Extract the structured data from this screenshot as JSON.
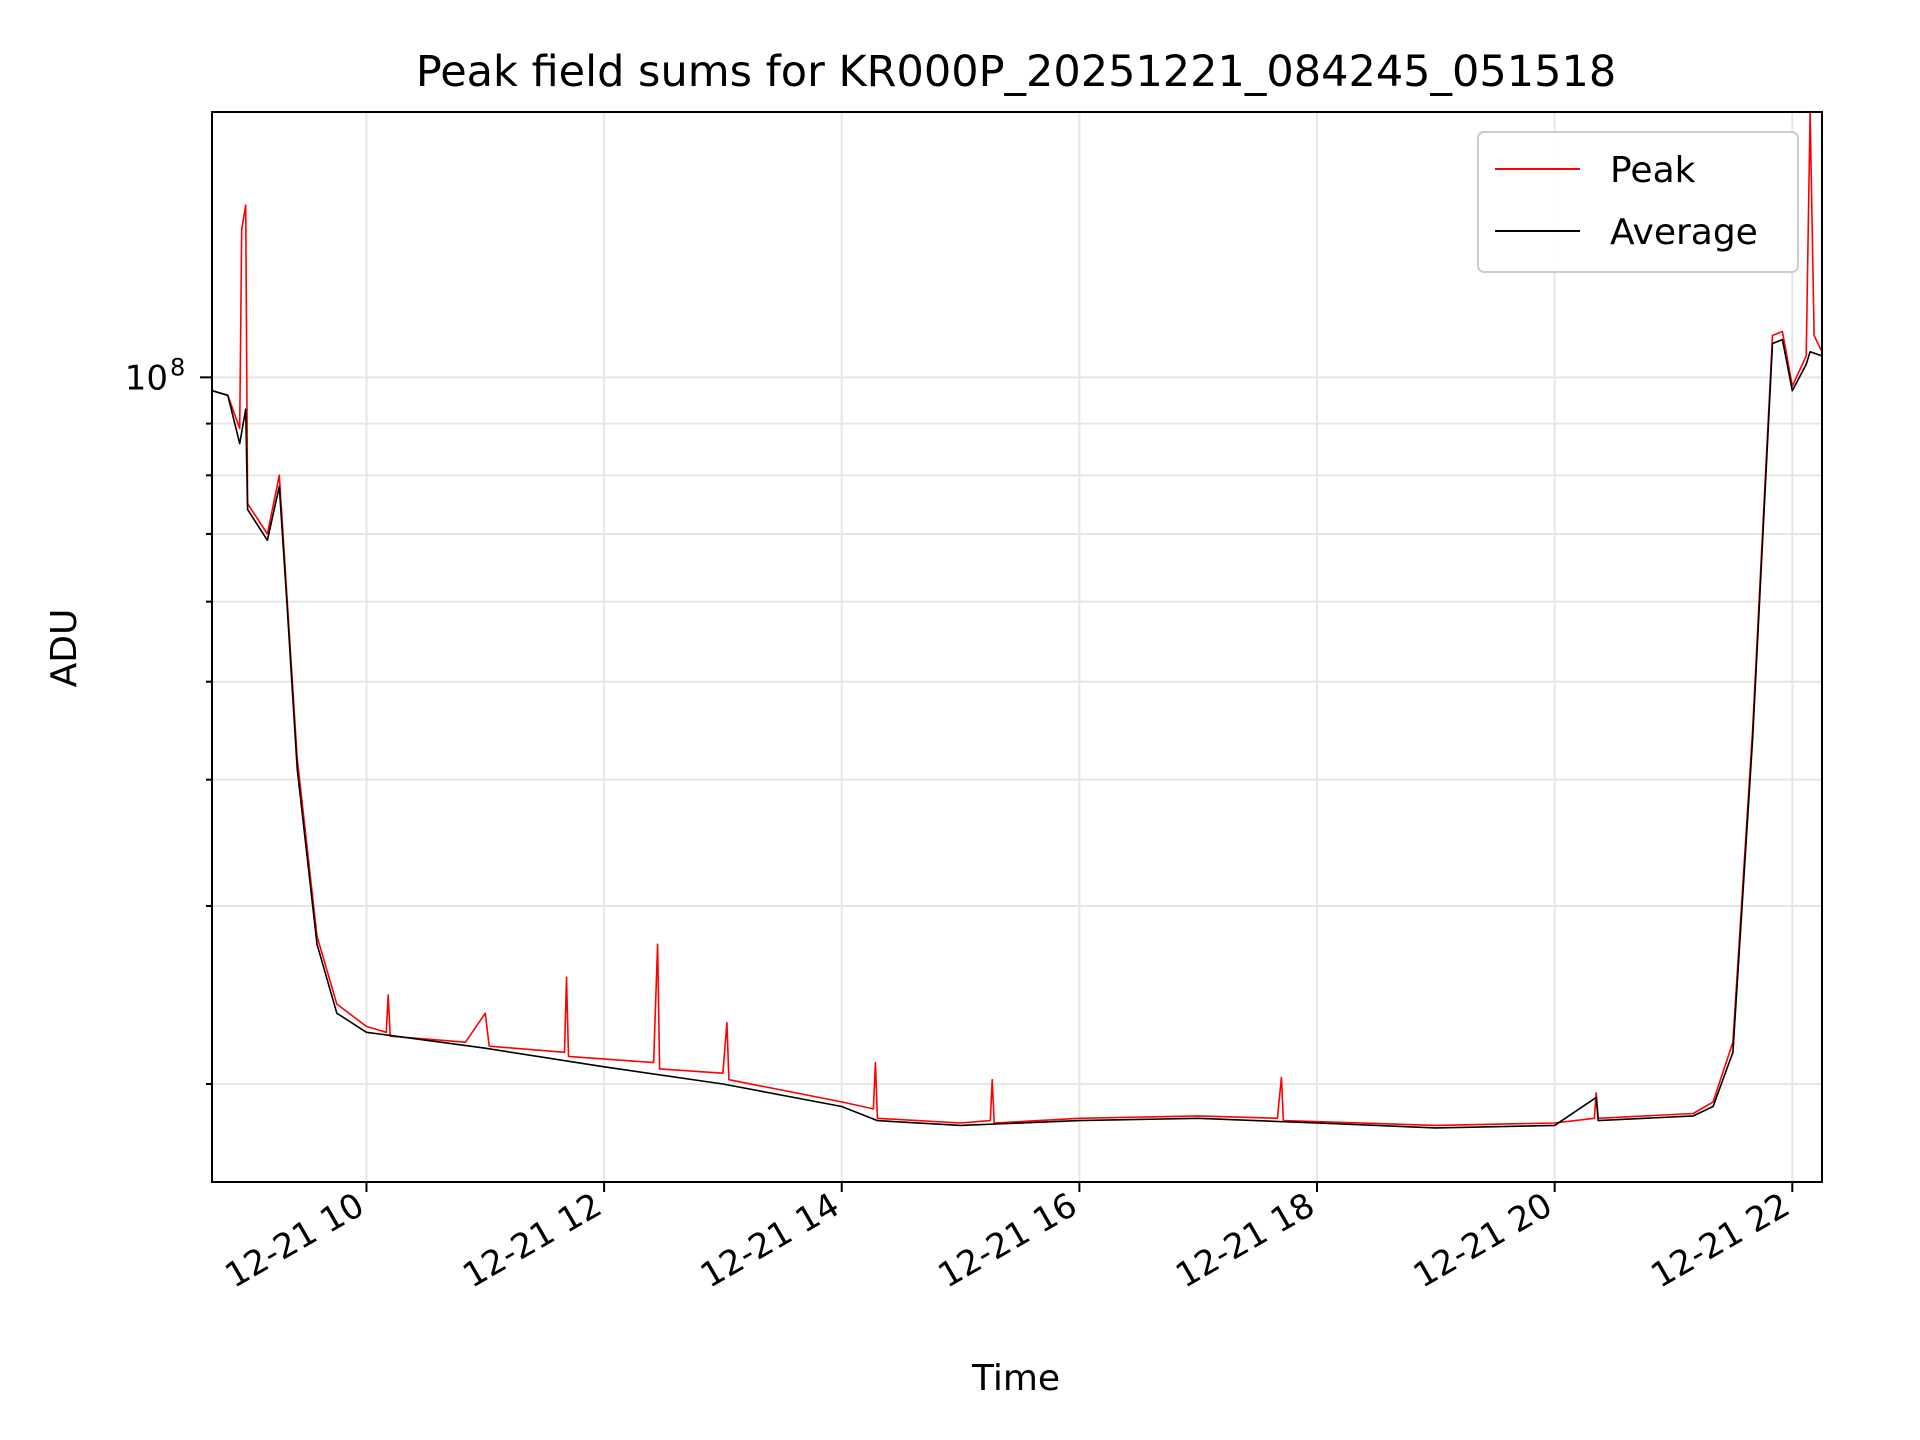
{
  "chart_data": {
    "type": "line",
    "title": "Peak field sums for KR000P_20251221_084245_051518",
    "xlabel": "Time",
    "ylabel": "ADU",
    "x_range": [
      "2025-12-21 08:42",
      "2025-12-21 22:15"
    ],
    "ylim": [
      16000000,
      183000000
    ],
    "y_scale": "log",
    "grid": true,
    "legend": "top-right",
    "x_ticks": [
      {
        "time": "2025-12-21 10:00",
        "label": "12-21 10"
      },
      {
        "time": "2025-12-21 12:00",
        "label": "12-21 12"
      },
      {
        "time": "2025-12-21 14:00",
        "label": "12-21 14"
      },
      {
        "time": "2025-12-21 16:00",
        "label": "12-21 16"
      },
      {
        "time": "2025-12-21 18:00",
        "label": "12-21 18"
      },
      {
        "time": "2025-12-21 20:00",
        "label": "12-21 20"
      },
      {
        "time": "2025-12-21 22:00",
        "label": "12-21 22"
      }
    ],
    "y_major_ticks": [
      {
        "value": 100000000,
        "base": "10",
        "exp": "8"
      }
    ],
    "y_minor_ticks": [
      20000000,
      30000000,
      40000000,
      50000000,
      60000000,
      70000000,
      80000000,
      90000000
    ],
    "series": [
      {
        "name": "Peak",
        "color": "#ff0000",
        "points": [
          [
            "2025-12-21 08:42",
            97000000
          ],
          [
            "2025-12-21 08:50",
            96000000
          ],
          [
            "2025-12-21 08:56",
            89000000
          ],
          [
            "2025-12-21 08:57",
            140000000
          ],
          [
            "2025-12-21 08:59",
            148000000
          ],
          [
            "2025-12-21 09:00",
            75000000
          ],
          [
            "2025-12-21 09:10",
            70000000
          ],
          [
            "2025-12-21 09:16",
            80000000
          ],
          [
            "2025-12-21 09:20",
            60000000
          ],
          [
            "2025-12-21 09:25",
            42000000
          ],
          [
            "2025-12-21 09:35",
            28000000
          ],
          [
            "2025-12-21 09:45",
            24000000
          ],
          [
            "2025-12-21 10:00",
            22800000
          ],
          [
            "2025-12-21 10:10",
            22500000
          ],
          [
            "2025-12-21 10:11",
            24500000
          ],
          [
            "2025-12-21 10:12",
            22300000
          ],
          [
            "2025-12-21 10:50",
            22000000
          ],
          [
            "2025-12-21 11:00",
            23500000
          ],
          [
            "2025-12-21 11:02",
            21800000
          ],
          [
            "2025-12-21 11:40",
            21500000
          ],
          [
            "2025-12-21 11:41",
            25500000
          ],
          [
            "2025-12-21 11:42",
            21300000
          ],
          [
            "2025-12-21 12:25",
            21000000
          ],
          [
            "2025-12-21 12:27",
            27500000
          ],
          [
            "2025-12-21 12:28",
            20700000
          ],
          [
            "2025-12-21 13:00",
            20500000
          ],
          [
            "2025-12-21 13:02",
            23000000
          ],
          [
            "2025-12-21 13:03",
            20200000
          ],
          [
            "2025-12-21 14:00",
            19200000
          ],
          [
            "2025-12-21 14:16",
            18900000
          ],
          [
            "2025-12-21 14:17",
            21000000
          ],
          [
            "2025-12-21 14:18",
            18500000
          ],
          [
            "2025-12-21 15:00",
            18300000
          ],
          [
            "2025-12-21 15:15",
            18400000
          ],
          [
            "2025-12-21 15:16",
            20200000
          ],
          [
            "2025-12-21 15:17",
            18300000
          ],
          [
            "2025-12-21 16:00",
            18500000
          ],
          [
            "2025-12-21 17:00",
            18600000
          ],
          [
            "2025-12-21 17:40",
            18500000
          ],
          [
            "2025-12-21 17:42",
            20300000
          ],
          [
            "2025-12-21 17:43",
            18400000
          ],
          [
            "2025-12-21 19:00",
            18200000
          ],
          [
            "2025-12-21 20:00",
            18300000
          ],
          [
            "2025-12-21 20:20",
            18500000
          ],
          [
            "2025-12-21 20:21",
            19600000
          ],
          [
            "2025-12-21 20:22",
            18500000
          ],
          [
            "2025-12-21 21:10",
            18700000
          ],
          [
            "2025-12-21 21:20",
            19200000
          ],
          [
            "2025-12-21 21:30",
            22000000
          ],
          [
            "2025-12-21 21:40",
            45000000
          ],
          [
            "2025-12-21 21:50",
            110000000
          ],
          [
            "2025-12-21 21:55",
            111000000
          ],
          [
            "2025-12-21 22:00",
            98000000
          ],
          [
            "2025-12-21 22:07",
            105000000
          ],
          [
            "2025-12-21 22:09",
            183000000
          ],
          [
            "2025-12-21 22:11",
            110000000
          ],
          [
            "2025-12-21 22:15",
            106000000
          ]
        ]
      },
      {
        "name": "Average",
        "color": "#000000",
        "points": [
          [
            "2025-12-21 08:42",
            97000000
          ],
          [
            "2025-12-21 08:50",
            96000000
          ],
          [
            "2025-12-21 08:56",
            86000000
          ],
          [
            "2025-12-21 08:59",
            93000000
          ],
          [
            "2025-12-21 09:00",
            74000000
          ],
          [
            "2025-12-21 09:10",
            69000000
          ],
          [
            "2025-12-21 09:16",
            78000000
          ],
          [
            "2025-12-21 09:20",
            59000000
          ],
          [
            "2025-12-21 09:25",
            41000000
          ],
          [
            "2025-12-21 09:35",
            27500000
          ],
          [
            "2025-12-21 09:45",
            23500000
          ],
          [
            "2025-12-21 10:00",
            22500000
          ],
          [
            "2025-12-21 11:00",
            21700000
          ],
          [
            "2025-12-21 12:00",
            20800000
          ],
          [
            "2025-12-21 13:00",
            20000000
          ],
          [
            "2025-12-21 14:00",
            19000000
          ],
          [
            "2025-12-21 14:18",
            18400000
          ],
          [
            "2025-12-21 15:00",
            18200000
          ],
          [
            "2025-12-21 16:00",
            18400000
          ],
          [
            "2025-12-21 17:00",
            18500000
          ],
          [
            "2025-12-21 18:00",
            18300000
          ],
          [
            "2025-12-21 19:00",
            18100000
          ],
          [
            "2025-12-21 20:00",
            18200000
          ],
          [
            "2025-12-21 20:21",
            19400000
          ],
          [
            "2025-12-21 20:22",
            18400000
          ],
          [
            "2025-12-21 21:10",
            18600000
          ],
          [
            "2025-12-21 21:20",
            19000000
          ],
          [
            "2025-12-21 21:30",
            21500000
          ],
          [
            "2025-12-21 21:40",
            44000000
          ],
          [
            "2025-12-21 21:50",
            108000000
          ],
          [
            "2025-12-21 21:55",
            109000000
          ],
          [
            "2025-12-21 22:00",
            97000000
          ],
          [
            "2025-12-21 22:07",
            103000000
          ],
          [
            "2025-12-21 22:09",
            106000000
          ],
          [
            "2025-12-21 22:15",
            105000000
          ]
        ]
      }
    ]
  }
}
